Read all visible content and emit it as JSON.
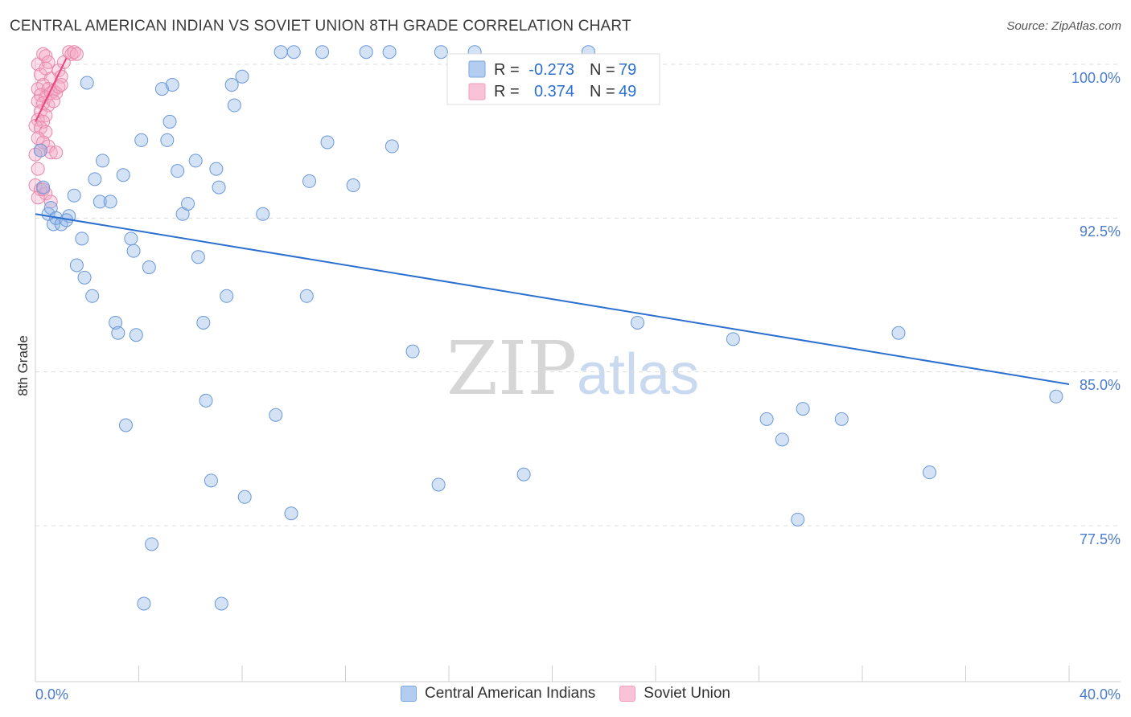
{
  "title": "CENTRAL AMERICAN INDIAN VS SOVIET UNION 8TH GRADE CORRELATION CHART",
  "source": "Source: ZipAtlas.com",
  "watermark": {
    "zip": "ZIP",
    "atlas": "atlas"
  },
  "chart_data": {
    "type": "scatter",
    "title": "CENTRAL AMERICAN INDIAN VS SOVIET UNION 8TH GRADE CORRELATION CHART",
    "xlabel": "",
    "ylabel": "8th Grade",
    "xlim": [
      0,
      40
    ],
    "ylim": [
      70.0,
      101.5
    ],
    "x_tick_labels": [
      "0.0%",
      "40.0%"
    ],
    "y_ticks": [
      100.0,
      92.5,
      85.0,
      77.5
    ],
    "y_tick_labels": [
      "100.0%",
      "92.5%",
      "85.0%",
      "77.5%"
    ],
    "legend": [
      {
        "name": "Central American Indians",
        "r_label": "R =",
        "r": "-0.273",
        "n_label": "N =",
        "n": "79"
      },
      {
        "name": "Soviet Union",
        "r_label": "R =",
        "r": "0.374",
        "n_label": "N =",
        "n": "49"
      }
    ],
    "series": [
      {
        "name": "Central American Indians",
        "color": "#8fb4e8",
        "stroke": "#6a98d8",
        "line_color": "#2b6fcf",
        "trend": [
          [
            0.0,
            92.7
          ],
          [
            40.0,
            84.4
          ]
        ],
        "points": [
          [
            0.3,
            94.0
          ],
          [
            0.5,
            92.7
          ],
          [
            0.7,
            92.2
          ],
          [
            0.6,
            93.0
          ],
          [
            0.8,
            92.5
          ],
          [
            1.0,
            92.2
          ],
          [
            1.3,
            92.6
          ],
          [
            1.5,
            93.6
          ],
          [
            2.0,
            99.1
          ],
          [
            1.8,
            91.5
          ],
          [
            1.6,
            90.2
          ],
          [
            1.9,
            89.6
          ],
          [
            2.2,
            88.7
          ],
          [
            2.3,
            94.4
          ],
          [
            2.5,
            93.3
          ],
          [
            2.6,
            95.3
          ],
          [
            2.9,
            93.3
          ],
          [
            3.1,
            87.4
          ],
          [
            3.2,
            86.9
          ],
          [
            3.4,
            94.6
          ],
          [
            3.5,
            82.4
          ],
          [
            3.7,
            91.5
          ],
          [
            3.8,
            90.9
          ],
          [
            3.9,
            86.8
          ],
          [
            4.1,
            96.3
          ],
          [
            4.2,
            73.7
          ],
          [
            4.4,
            90.1
          ],
          [
            4.5,
            76.6
          ],
          [
            4.9,
            98.8
          ],
          [
            5.1,
            96.3
          ],
          [
            5.2,
            97.2
          ],
          [
            5.3,
            99.0
          ],
          [
            5.5,
            94.8
          ],
          [
            5.7,
            92.7
          ],
          [
            5.9,
            93.2
          ],
          [
            6.3,
            90.6
          ],
          [
            6.2,
            95.3
          ],
          [
            6.5,
            87.4
          ],
          [
            6.6,
            83.6
          ],
          [
            6.8,
            79.7
          ],
          [
            7.0,
            94.9
          ],
          [
            7.1,
            94.0
          ],
          [
            7.2,
            73.7
          ],
          [
            7.4,
            88.7
          ],
          [
            7.6,
            99.0
          ],
          [
            7.7,
            98.0
          ],
          [
            8.0,
            99.4
          ],
          [
            8.1,
            78.9
          ],
          [
            8.8,
            92.7
          ],
          [
            9.3,
            82.9
          ],
          [
            9.5,
            100.6
          ],
          [
            10.0,
            100.6
          ],
          [
            9.9,
            78.1
          ],
          [
            10.5,
            88.7
          ],
          [
            10.6,
            94.3
          ],
          [
            11.1,
            100.6
          ],
          [
            11.3,
            96.2
          ],
          [
            12.3,
            94.1
          ],
          [
            12.8,
            100.6
          ],
          [
            13.7,
            100.6
          ],
          [
            13.8,
            96.0
          ],
          [
            14.6,
            86.0
          ],
          [
            15.7,
            100.6
          ],
          [
            15.6,
            79.5
          ],
          [
            17.0,
            100.6
          ],
          [
            18.9,
            80.0
          ],
          [
            23.3,
            87.4
          ],
          [
            27.0,
            86.6
          ],
          [
            28.3,
            82.7
          ],
          [
            28.9,
            81.7
          ],
          [
            29.5,
            77.8
          ],
          [
            29.7,
            83.2
          ],
          [
            31.2,
            82.7
          ],
          [
            33.4,
            86.9
          ],
          [
            34.6,
            80.1
          ],
          [
            39.5,
            83.8
          ],
          [
            21.4,
            100.6
          ],
          [
            0.2,
            95.8
          ],
          [
            1.2,
            92.4
          ]
        ]
      },
      {
        "name": "Soviet Union",
        "color": "#f4a9c4",
        "stroke": "#e887aa",
        "line_color": "#e8457d",
        "trend": [
          [
            0.0,
            97.2
          ],
          [
            1.2,
            100.3
          ]
        ],
        "points": [
          [
            0.1,
            100.0
          ],
          [
            0.3,
            100.5
          ],
          [
            0.4,
            100.4
          ],
          [
            0.5,
            100.1
          ],
          [
            0.2,
            99.5
          ],
          [
            0.4,
            99.8
          ],
          [
            0.6,
            99.3
          ],
          [
            0.3,
            99.0
          ],
          [
            0.1,
            98.8
          ],
          [
            0.5,
            98.8
          ],
          [
            0.7,
            98.7
          ],
          [
            0.2,
            98.5
          ],
          [
            0.4,
            98.4
          ],
          [
            0.6,
            98.6
          ],
          [
            0.1,
            98.2
          ],
          [
            0.3,
            98.1
          ],
          [
            0.5,
            98.0
          ],
          [
            0.2,
            97.7
          ],
          [
            0.4,
            97.5
          ],
          [
            0.1,
            97.3
          ],
          [
            0.3,
            97.2
          ],
          [
            0.0,
            97.0
          ],
          [
            0.2,
            96.9
          ],
          [
            0.4,
            96.7
          ],
          [
            0.1,
            96.4
          ],
          [
            0.3,
            96.2
          ],
          [
            0.5,
            96.0
          ],
          [
            0.2,
            95.8
          ],
          [
            0.6,
            95.7
          ],
          [
            0.8,
            95.7
          ],
          [
            0.1,
            94.9
          ],
          [
            0.0,
            94.1
          ],
          [
            0.2,
            93.9
          ],
          [
            0.4,
            93.7
          ],
          [
            0.1,
            93.5
          ],
          [
            0.6,
            93.3
          ],
          [
            0.9,
            99.7
          ],
          [
            1.0,
            99.4
          ],
          [
            1.1,
            100.1
          ],
          [
            1.3,
            100.6
          ],
          [
            1.4,
            100.5
          ],
          [
            1.5,
            100.6
          ],
          [
            1.6,
            100.5
          ],
          [
            0.8,
            98.6
          ],
          [
            0.7,
            98.2
          ],
          [
            0.9,
            98.9
          ],
          [
            1.0,
            99.0
          ],
          [
            0.0,
            95.6
          ],
          [
            0.3,
            93.9
          ]
        ]
      }
    ]
  }
}
